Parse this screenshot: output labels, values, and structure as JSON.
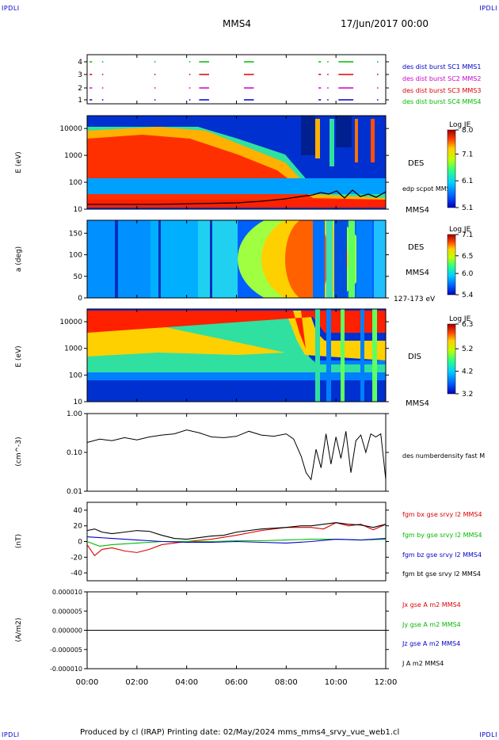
{
  "corners": {
    "tl": "IPDLI",
    "tr": "IPDLI",
    "bl": "IPDLI",
    "br": "IPDLI"
  },
  "header": {
    "spacecraft": "MMS4",
    "date": "17/Jun/2017 00:00"
  },
  "footer": {
    "text": "Produced by cl (IRAP)   Printing date: 02/May/2024   mms_mms4_srvy_vue_web1.cl"
  },
  "x_axis": {
    "ticks": [
      "00:00",
      "02:00",
      "04:00",
      "06:00",
      "08:00",
      "10:00",
      "12:00"
    ]
  },
  "colors": {
    "mms1": "#0000cc",
    "mms2": "#cc00cc",
    "mms3": "#dd0000",
    "mms4": "#00bb00",
    "black": "#000000"
  },
  "chart_data": [
    {
      "type": "timeline",
      "panel": "burst",
      "yticks": [
        "1",
        "2",
        "3",
        "4"
      ],
      "legend": [
        "des dist burst SC1 MMS1",
        "des dist burst SC2 MMS2",
        "des dist burst SC3 MMS3",
        "des dist burst SC4 MMS4"
      ],
      "intervals_hours": [
        [
          0.1,
          0.2
        ],
        [
          0.6,
          0.65
        ],
        [
          2.7,
          2.75
        ],
        [
          4.1,
          4.15
        ],
        [
          4.5,
          4.9
        ],
        [
          6.3,
          6.7
        ],
        [
          9.3,
          9.4
        ],
        [
          9.65,
          9.7
        ],
        [
          10.1,
          10.7
        ],
        [
          11.65,
          11.7
        ]
      ]
    },
    {
      "type": "heatmap",
      "panel": "des-energy",
      "ylabel": "E (eV)",
      "yscale": "log",
      "yticks": [
        "10",
        "100",
        "1000",
        "10000"
      ],
      "label": "DES",
      "sublabel": "MMS4",
      "overlay_label": "edp scpot MMS4",
      "colorbar": {
        "title": "Log JE",
        "ticks": [
          "8.0",
          "7.1",
          "6.1",
          "5.1"
        ],
        "range": [
          5.1,
          8.0
        ]
      }
    },
    {
      "type": "heatmap",
      "panel": "des-pitch",
      "ylabel": "a (deg)",
      "yticks": [
        "0",
        "50",
        "100",
        "150"
      ],
      "ylim": [
        0,
        180
      ],
      "label": "DES",
      "sublabel": "MMS4",
      "energy_range": "127-173 eV",
      "colorbar": {
        "title": "Log JE",
        "ticks": [
          "7.1",
          "6.5",
          "6.0",
          "5.4"
        ],
        "range": [
          5.4,
          7.1
        ]
      }
    },
    {
      "type": "heatmap",
      "panel": "dis-energy",
      "ylabel": "E (eV)",
      "yscale": "log",
      "yticks": [
        "10",
        "100",
        "1000",
        "10000"
      ],
      "label": "DIS",
      "sublabel": "MMS4",
      "colorbar": {
        "title": "Log JE",
        "ticks": [
          "6.3",
          "5.2",
          "4.2",
          "3.2"
        ],
        "range": [
          3.2,
          6.3
        ]
      }
    },
    {
      "type": "line",
      "panel": "density",
      "ylabel": "(cm^-3)",
      "yscale": "log",
      "yticks": [
        "0.01",
        "0.10",
        "1.00"
      ],
      "ylim": [
        0.01,
        1.0
      ],
      "series": [
        {
          "name": "des numberdensity fast M",
          "color": "#000000",
          "x": [
            0,
            0.5,
            1,
            1.5,
            2,
            2.5,
            3,
            3.5,
            4,
            4.5,
            5,
            5.5,
            6,
            6.5,
            7,
            7.5,
            8,
            8.3,
            8.6,
            8.8,
            9.0,
            9.2,
            9.4,
            9.6,
            9.8,
            10.0,
            10.2,
            10.4,
            10.6,
            10.8,
            11.0,
            11.2,
            11.4,
            11.6,
            11.8,
            11.9,
            12.0
          ],
          "y": [
            0.18,
            0.22,
            0.2,
            0.24,
            0.21,
            0.25,
            0.28,
            0.3,
            0.38,
            0.32,
            0.25,
            0.24,
            0.26,
            0.35,
            0.28,
            0.26,
            0.3,
            0.22,
            0.08,
            0.03,
            0.02,
            0.12,
            0.04,
            0.3,
            0.05,
            0.25,
            0.07,
            0.35,
            0.03,
            0.2,
            0.28,
            0.1,
            0.3,
            0.25,
            0.3,
            0.08,
            0.02
          ]
        }
      ]
    },
    {
      "type": "line",
      "panel": "magnetic-field",
      "ylabel": "(nT)",
      "yticks": [
        "-40",
        "-20",
        "0",
        "20",
        "40"
      ],
      "ylim": [
        -50,
        50
      ],
      "series": [
        {
          "name": "fgm bx gse srvy l2 MMS4",
          "color": "#dd0000",
          "x": [
            0,
            0.3,
            0.6,
            1,
            1.5,
            2,
            2.5,
            3,
            4,
            5,
            6,
            7,
            8,
            9,
            9.5,
            10,
            10.5,
            11,
            11.5,
            12
          ],
          "y": [
            -4,
            -18,
            -10,
            -8,
            -12,
            -14,
            -10,
            -4,
            0,
            3,
            8,
            14,
            18,
            18,
            16,
            24,
            20,
            22,
            15,
            22
          ]
        },
        {
          "name": "fgm by gse srvy l2 MMS4",
          "color": "#00bb00",
          "x": [
            0,
            0.5,
            1,
            1.5,
            2,
            2.5,
            3,
            4,
            5,
            6,
            7,
            8,
            9,
            10,
            11,
            12
          ],
          "y": [
            0,
            -6,
            -4,
            -3,
            -2,
            -1,
            0,
            0,
            0,
            1,
            1,
            2,
            3,
            3,
            2,
            3
          ]
        },
        {
          "name": "fgm bz gse srvy l2 MMS4",
          "color": "#0000cc",
          "x": [
            0,
            0.5,
            1,
            1.5,
            2,
            2.5,
            3,
            4,
            5,
            6,
            7,
            8,
            9,
            10,
            11,
            12
          ],
          "y": [
            6,
            5,
            4,
            3,
            2,
            1,
            0,
            -1,
            -1,
            0,
            -1,
            -2,
            0,
            3,
            2,
            4
          ]
        },
        {
          "name": "fgm bt gse srvy l2 MMS4",
          "color": "#000000",
          "x": [
            0,
            0.3,
            0.6,
            1,
            1.5,
            2,
            2.5,
            3,
            3.5,
            4,
            4.5,
            5,
            5.5,
            6,
            7,
            8,
            8.6,
            9,
            9.5,
            10,
            10.5,
            11,
            11.5,
            12
          ],
          "y": [
            14,
            16,
            12,
            10,
            12,
            14,
            13,
            8,
            4,
            3,
            5,
            7,
            8,
            12,
            16,
            18,
            20,
            20,
            22,
            24,
            22,
            21,
            18,
            22
          ]
        }
      ]
    },
    {
      "type": "line",
      "panel": "current-density",
      "ylabel": "(A/m2)",
      "yticks": [
        "0.000010",
        "0.000005",
        "0.000000",
        "-0.000005",
        "-0.000010"
      ],
      "ylim": [
        -1e-05,
        1e-05
      ],
      "series": [
        {
          "name": "Jx gse A m2 MMS4",
          "color": "#dd0000",
          "x": [
            0,
            12
          ],
          "y": [
            0,
            0
          ]
        },
        {
          "name": "Jy gse A m2 MMS4",
          "color": "#00bb00",
          "x": [
            0,
            12
          ],
          "y": [
            0,
            0
          ]
        },
        {
          "name": "Jz gse A m2 MMS4",
          "color": "#0000cc",
          "x": [
            0,
            12
          ],
          "y": [
            0,
            0
          ]
        },
        {
          "name": "J A m2 MMS4",
          "color": "#000000",
          "x": [
            0,
            12
          ],
          "y": [
            0,
            0
          ]
        }
      ]
    }
  ]
}
